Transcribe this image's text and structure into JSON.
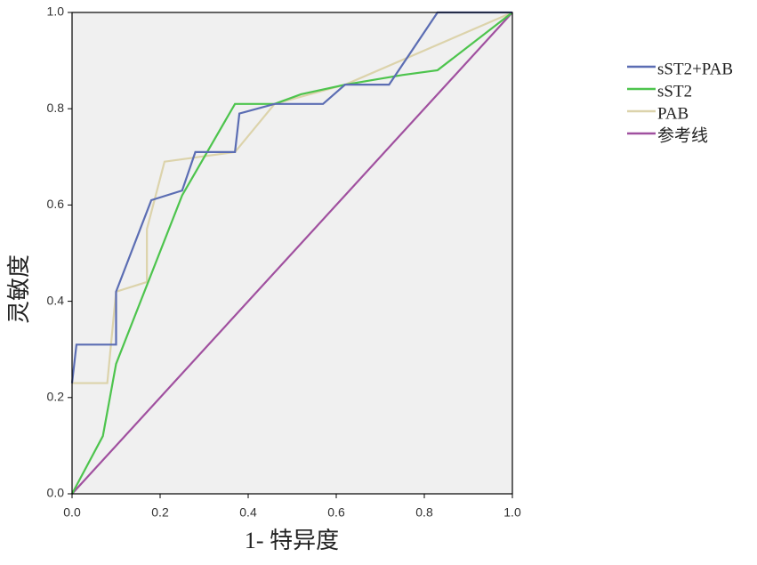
{
  "chart_data": {
    "type": "line",
    "xlabel": "1- 特异度",
    "ylabel": "灵敏度",
    "xlim": [
      0,
      1
    ],
    "ylim": [
      0,
      1
    ],
    "xticks": [
      {
        "value": 0,
        "label": "0.0"
      },
      {
        "value": 0.2,
        "label": "0.2"
      },
      {
        "value": 0.4,
        "label": "0.4"
      },
      {
        "value": 0.6,
        "label": "0.6"
      },
      {
        "value": 0.8,
        "label": "0.8"
      },
      {
        "value": 1,
        "label": "1.0"
      }
    ],
    "yticks": [
      {
        "value": 0,
        "label": "0.0"
      },
      {
        "value": 0.2,
        "label": "0.2"
      },
      {
        "value": 0.4,
        "label": "0.4"
      },
      {
        "value": 0.6,
        "label": "0.6"
      },
      {
        "value": 0.8,
        "label": "0.8"
      },
      {
        "value": 1,
        "label": "1.0"
      }
    ],
    "legend": "right",
    "series": [
      {
        "name": "sST2+PAB",
        "color": "#5b6db3",
        "x": [
          0,
          0.01,
          0.1,
          0.1,
          0.18,
          0.25,
          0.28,
          0.37,
          0.38,
          0.46,
          0.57,
          0.62,
          0.72,
          0.83,
          1
        ],
        "values": [
          0.23,
          0.31,
          0.31,
          0.42,
          0.61,
          0.63,
          0.71,
          0.71,
          0.79,
          0.81,
          0.81,
          0.85,
          0.85,
          1,
          1
        ]
      },
      {
        "name": "sST2",
        "color": "#4dc44d",
        "x": [
          0,
          0.07,
          0.1,
          0.25,
          0.37,
          0.46,
          0.52,
          0.62,
          0.75,
          0.83,
          1
        ],
        "values": [
          0,
          0.12,
          0.27,
          0.62,
          0.81,
          0.81,
          0.83,
          0.85,
          0.87,
          0.88,
          1
        ]
      },
      {
        "name": "PAB",
        "color": "#dcd3ab",
        "x": [
          0,
          0.08,
          0.1,
          0.17,
          0.17,
          0.21,
          0.37,
          0.46,
          0.62,
          1
        ],
        "values": [
          0.23,
          0.23,
          0.42,
          0.44,
          0.55,
          0.69,
          0.71,
          0.81,
          0.85,
          1
        ]
      },
      {
        "name": "参考线",
        "color": "#a0509f",
        "x": [
          0,
          1
        ],
        "values": [
          0,
          1
        ]
      }
    ]
  }
}
